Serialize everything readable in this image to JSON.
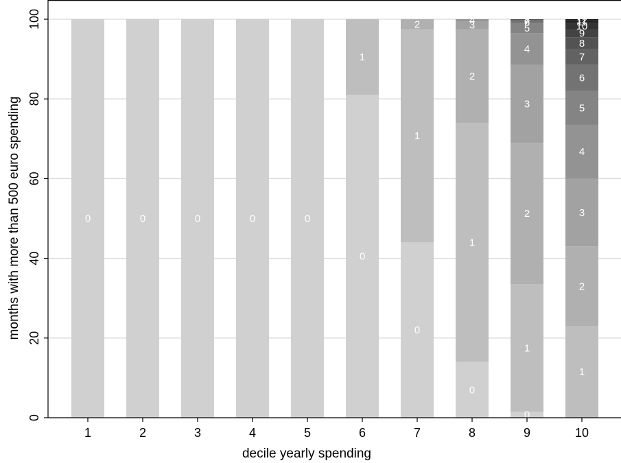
{
  "chart_data": {
    "type": "bar",
    "stacked": true,
    "xlabel": "decile yearly spending",
    "ylabel": "months with more than 500 euro spending",
    "ylim": [
      0,
      100
    ],
    "yticks": [
      0,
      20,
      40,
      60,
      80,
      100
    ],
    "grid": "horizontal",
    "categories": [
      "1",
      "2",
      "3",
      "4",
      "5",
      "6",
      "7",
      "8",
      "9",
      "10"
    ],
    "stacks": [
      {
        "category": "1",
        "segments": [
          {
            "label": "0",
            "value": 100
          }
        ]
      },
      {
        "category": "2",
        "segments": [
          {
            "label": "0",
            "value": 100
          }
        ]
      },
      {
        "category": "3",
        "segments": [
          {
            "label": "0",
            "value": 100
          }
        ]
      },
      {
        "category": "4",
        "segments": [
          {
            "label": "0",
            "value": 100
          }
        ]
      },
      {
        "category": "5",
        "segments": [
          {
            "label": "0",
            "value": 100
          }
        ]
      },
      {
        "category": "6",
        "segments": [
          {
            "label": "0",
            "value": 81
          },
          {
            "label": "1",
            "value": 19
          }
        ]
      },
      {
        "category": "7",
        "segments": [
          {
            "label": "0",
            "value": 44
          },
          {
            "label": "1",
            "value": 53.5
          },
          {
            "label": "2",
            "value": 2.5
          }
        ]
      },
      {
        "category": "8",
        "segments": [
          {
            "label": "0",
            "value": 14
          },
          {
            "label": "1",
            "value": 60
          },
          {
            "label": "2",
            "value": 23.5
          },
          {
            "label": "3",
            "value": 2
          },
          {
            "label": "4",
            "value": 0.5
          }
        ]
      },
      {
        "category": "9",
        "segments": [
          {
            "label": "0",
            "value": 1.5
          },
          {
            "label": "1",
            "value": 32
          },
          {
            "label": "2",
            "value": 35.5
          },
          {
            "label": "3",
            "value": 19.5
          },
          {
            "label": "4",
            "value": 8
          },
          {
            "label": "5",
            "value": 2.5
          },
          {
            "label": "6",
            "value": 0.5
          },
          {
            "label": "7",
            "value": 0.3
          },
          {
            "label": "8",
            "value": 0.2
          }
        ]
      },
      {
        "category": "10",
        "segments": [
          {
            "label": "1",
            "value": 23
          },
          {
            "label": "2",
            "value": 20
          },
          {
            "label": "3",
            "value": 17
          },
          {
            "label": "4",
            "value": 13.5
          },
          {
            "label": "5",
            "value": 8.5
          },
          {
            "label": "6",
            "value": 6.5
          },
          {
            "label": "7",
            "value": 4
          },
          {
            "label": "8",
            "value": 3
          },
          {
            "label": "9",
            "value": 2
          },
          {
            "label": "10",
            "value": 1.5
          },
          {
            "label": "11",
            "value": 0.7
          },
          {
            "label": "12",
            "value": 0.3
          }
        ]
      }
    ],
    "colors": {
      "0": "#d0d0d0",
      "1": "#bebebe",
      "2": "#b0b0b0",
      "3": "#a2a2a2",
      "4": "#939393",
      "5": "#848484",
      "6": "#737373",
      "7": "#626262",
      "8": "#535353",
      "9": "#434343",
      "10": "#333333",
      "11": "#232323",
      "12": "#121212"
    }
  }
}
